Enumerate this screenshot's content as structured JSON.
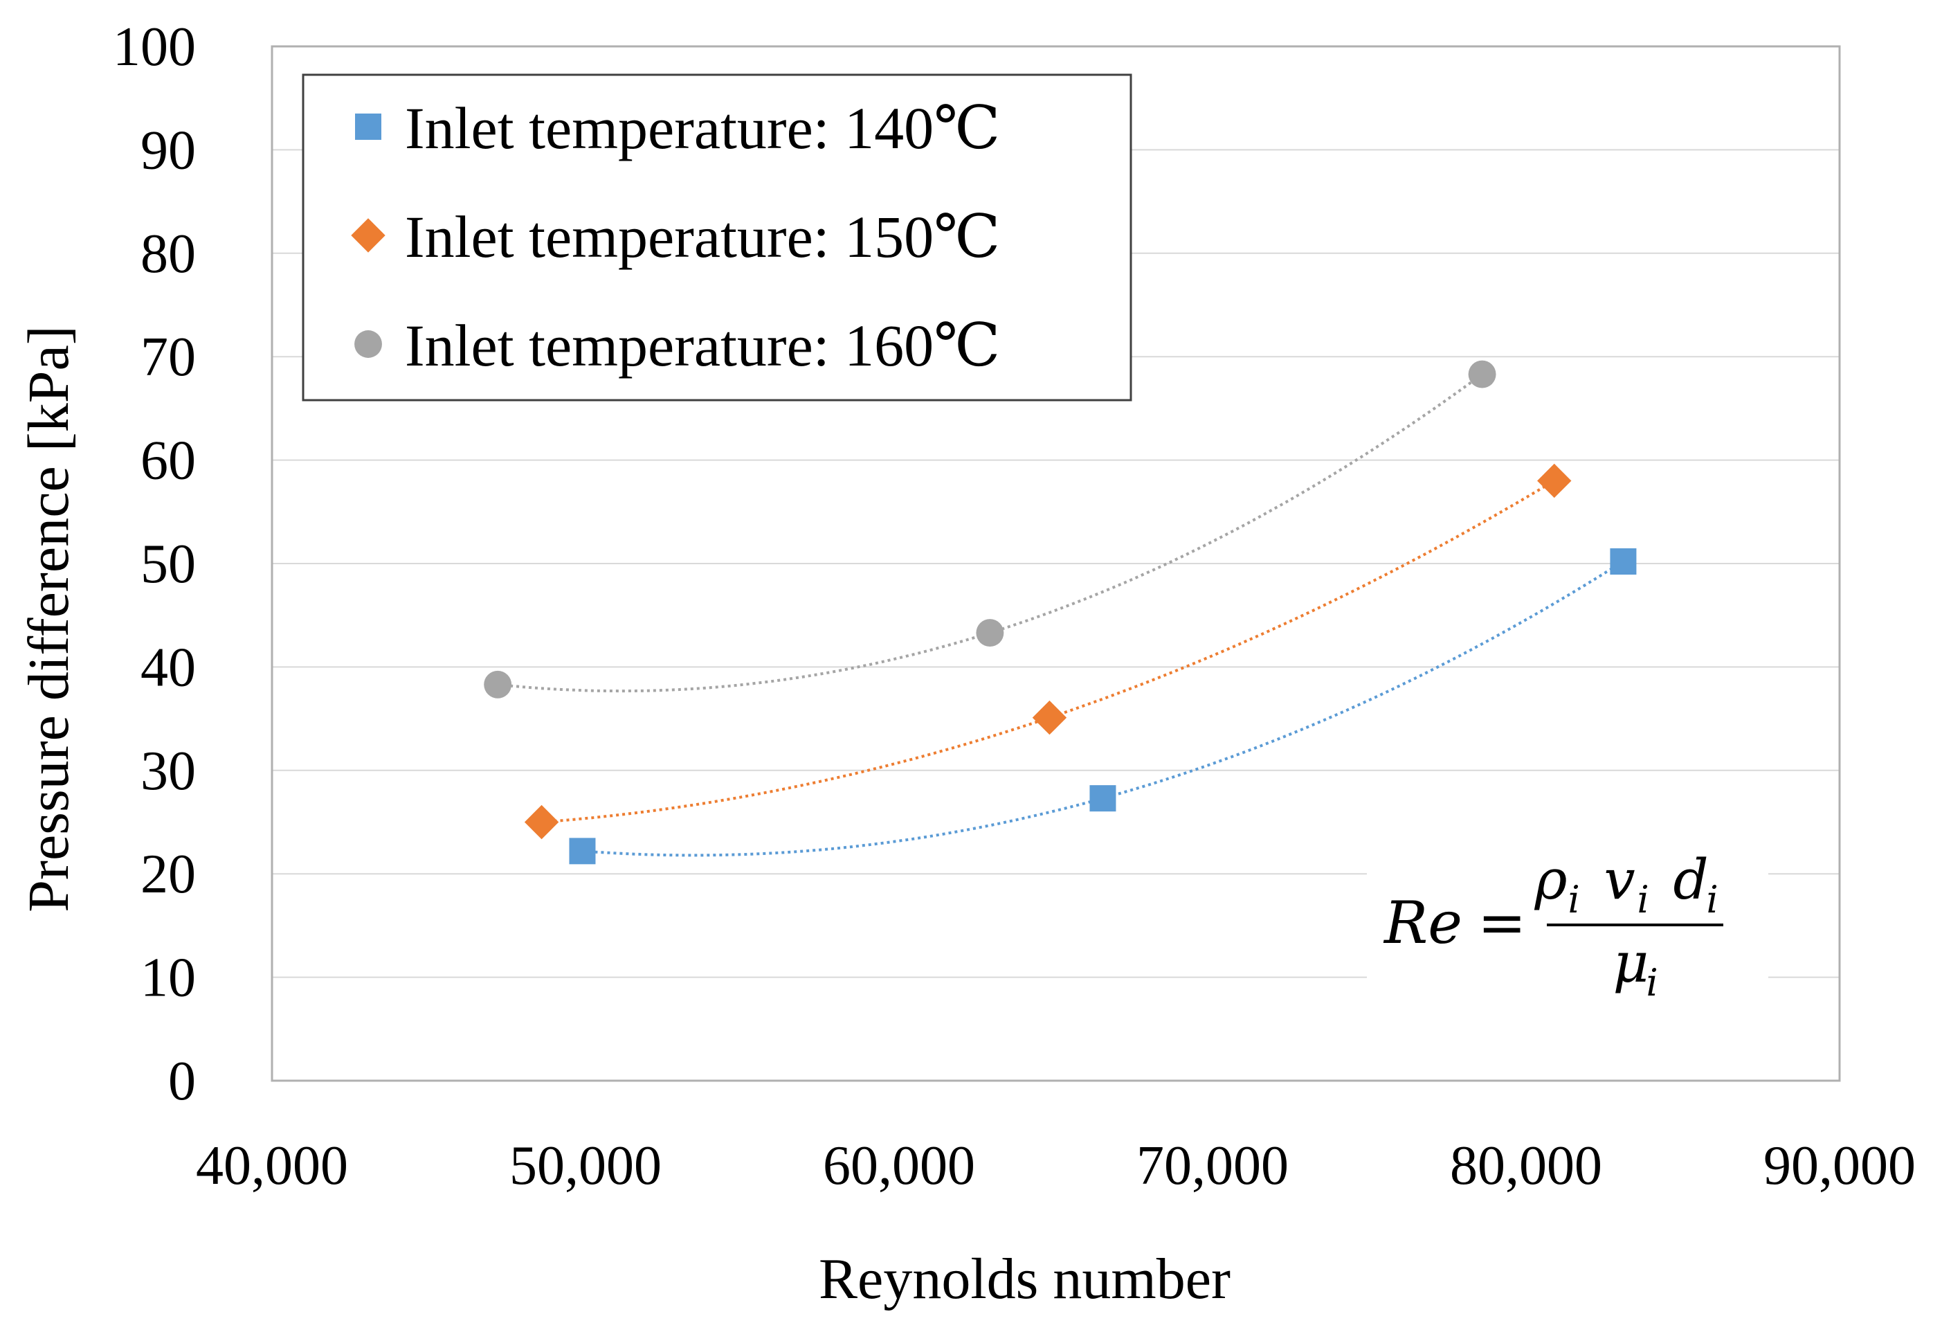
{
  "chart_data": {
    "type": "scatter",
    "title": "",
    "xlabel": "Reynolds number",
    "ylabel": "Pressure difference [kPa]",
    "xlim": [
      40000,
      90000
    ],
    "ylim": [
      0,
      100
    ],
    "x_ticks": [
      40000,
      50000,
      60000,
      70000,
      80000,
      90000
    ],
    "x_tick_labels": [
      "40,000",
      "50,000",
      "60,000",
      "70,000",
      "80,000",
      "90,000"
    ],
    "y_ticks": [
      0,
      10,
      20,
      30,
      40,
      50,
      60,
      70,
      80,
      90,
      100
    ],
    "y_tick_labels": [
      "0",
      "10",
      "20",
      "30",
      "40",
      "50",
      "60",
      "70",
      "80",
      "90",
      "100"
    ],
    "grid": "horizontal",
    "legend_position": "top-left",
    "trendline": "polynomial (order 2), dotted",
    "series": [
      {
        "name": "Inlet temperature: 140℃",
        "marker": "square",
        "color": "#5B9BD5",
        "points": [
          {
            "x": 49900,
            "y": 22.2
          },
          {
            "x": 66500,
            "y": 27.3
          },
          {
            "x": 83100,
            "y": 50.2
          }
        ]
      },
      {
        "name": "Inlet temperature: 150℃",
        "marker": "diamond",
        "color": "#ED7D31",
        "points": [
          {
            "x": 48600,
            "y": 25.0
          },
          {
            "x": 64800,
            "y": 35.1
          },
          {
            "x": 80900,
            "y": 58.0
          }
        ]
      },
      {
        "name": "Inlet temperature: 160℃",
        "marker": "circle",
        "color": "#A5A5A5",
        "points": [
          {
            "x": 47200,
            "y": 38.3
          },
          {
            "x": 62900,
            "y": 43.3
          },
          {
            "x": 78600,
            "y": 68.3
          }
        ]
      }
    ],
    "annotation": {
      "lhs": "Re",
      "equals": "=",
      "numerator": [
        {
          "base": "ρ",
          "sub": "i"
        },
        {
          "base": "v",
          "sub": "i"
        },
        {
          "base": "d",
          "sub": "i"
        }
      ],
      "denominator": [
        {
          "base": "μ",
          "sub": "i"
        }
      ]
    }
  }
}
